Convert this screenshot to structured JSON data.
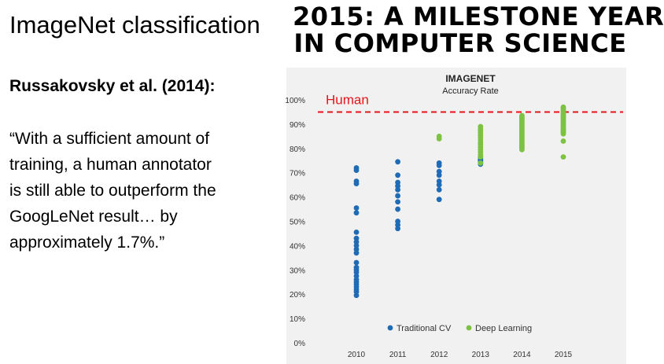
{
  "slide": {
    "title": "ImageNet classification",
    "citation": "Russakovsky et al. (2014):",
    "quote_lines": [
      "“With a sufficient amount of",
      "training, a human annotator",
      "is still able to outperform the",
      "GoogLeNet result… by",
      "approximately 1.7%.”"
    ],
    "headline_lines": [
      "2015: A MILESTONE YEAR",
      "IN COMPUTER SCIENCE"
    ]
  },
  "chart_data": {
    "type": "scatter",
    "title": "IMAGENET",
    "subtitle": "Accuracy Rate",
    "x_categories": [
      "2010",
      "2011",
      "2012",
      "2013",
      "2014",
      "2015"
    ],
    "y_ticks": [
      "0%",
      "10%",
      "20%",
      "30%",
      "40%",
      "50%",
      "60%",
      "70%",
      "80%",
      "90%",
      "100%"
    ],
    "ylim": [
      0,
      100
    ],
    "grid": false,
    "legend_position": "bottom",
    "human_line": {
      "label": "Human",
      "value": 95,
      "color": "#e8141b"
    },
    "series": [
      {
        "name": "Traditional CV",
        "color": "#1f6bb5",
        "points": [
          [
            "2010",
            72
          ],
          [
            "2010",
            71
          ],
          [
            "2010",
            66.5
          ],
          [
            "2010",
            65.5
          ],
          [
            "2010",
            55.5
          ],
          [
            "2010",
            53.5
          ],
          [
            "2010",
            45.5
          ],
          [
            "2010",
            43
          ],
          [
            "2010",
            41.5
          ],
          [
            "2010",
            40
          ],
          [
            "2010",
            38.5
          ],
          [
            "2010",
            37
          ],
          [
            "2010",
            33
          ],
          [
            "2010",
            31
          ],
          [
            "2010",
            30
          ],
          [
            "2010",
            29
          ],
          [
            "2010",
            27.5
          ],
          [
            "2010",
            26
          ],
          [
            "2010",
            25
          ],
          [
            "2010",
            24
          ],
          [
            "2010",
            23
          ],
          [
            "2010",
            22
          ],
          [
            "2010",
            21
          ],
          [
            "2010",
            19.5
          ],
          [
            "2011",
            74.5
          ],
          [
            "2011",
            69
          ],
          [
            "2011",
            66
          ],
          [
            "2011",
            64.5
          ],
          [
            "2011",
            63
          ],
          [
            "2011",
            60.5
          ],
          [
            "2011",
            58
          ],
          [
            "2011",
            55
          ],
          [
            "2011",
            50
          ],
          [
            "2011",
            48.5
          ],
          [
            "2011",
            47
          ],
          [
            "2012",
            74
          ],
          [
            "2012",
            73
          ],
          [
            "2012",
            70.5
          ],
          [
            "2012",
            69
          ],
          [
            "2012",
            66.5
          ],
          [
            "2012",
            65
          ],
          [
            "2012",
            63
          ],
          [
            "2012",
            59
          ],
          [
            "2013",
            76.5
          ],
          [
            "2013",
            75.5
          ],
          [
            "2013",
            75
          ],
          [
            "2013",
            74.5
          ],
          [
            "2013",
            74
          ],
          [
            "2013",
            73.5
          ]
        ]
      },
      {
        "name": "Deep Learning",
        "color": "#7dc242",
        "points": [
          [
            "2012",
            85
          ],
          [
            "2012",
            84
          ],
          [
            "2013",
            89
          ],
          [
            "2013",
            88
          ],
          [
            "2013",
            87.5
          ],
          [
            "2013",
            86.5
          ],
          [
            "2013",
            85.5
          ],
          [
            "2013",
            84.5
          ],
          [
            "2013",
            83.5
          ],
          [
            "2013",
            82.5
          ],
          [
            "2013",
            81.5
          ],
          [
            "2013",
            80.5
          ],
          [
            "2013",
            79.5
          ],
          [
            "2013",
            78.5
          ],
          [
            "2013",
            77.5
          ],
          [
            "2013",
            76.5
          ],
          [
            "2013",
            74
          ],
          [
            "2014",
            93.5
          ],
          [
            "2014",
            93
          ],
          [
            "2014",
            92.5
          ],
          [
            "2014",
            92
          ],
          [
            "2014",
            91.5
          ],
          [
            "2014",
            91
          ],
          [
            "2014",
            90.5
          ],
          [
            "2014",
            90
          ],
          [
            "2014",
            89.5
          ],
          [
            "2014",
            89
          ],
          [
            "2014",
            88.5
          ],
          [
            "2014",
            88
          ],
          [
            "2014",
            87.5
          ],
          [
            "2014",
            87
          ],
          [
            "2014",
            86.5
          ],
          [
            "2014",
            86
          ],
          [
            "2014",
            85.5
          ],
          [
            "2014",
            85
          ],
          [
            "2014",
            84.5
          ],
          [
            "2014",
            84
          ],
          [
            "2014",
            83.5
          ],
          [
            "2014",
            83
          ],
          [
            "2014",
            82.5
          ],
          [
            "2014",
            82
          ],
          [
            "2014",
            81.5
          ],
          [
            "2014",
            81
          ],
          [
            "2014",
            80.5
          ],
          [
            "2014",
            80
          ],
          [
            "2014",
            79.5
          ],
          [
            "2015",
            97
          ],
          [
            "2015",
            96.5
          ],
          [
            "2015",
            96
          ],
          [
            "2015",
            95.5
          ],
          [
            "2015",
            95
          ],
          [
            "2015",
            94.5
          ],
          [
            "2015",
            94
          ],
          [
            "2015",
            93.5
          ],
          [
            "2015",
            93
          ],
          [
            "2015",
            92.5
          ],
          [
            "2015",
            92
          ],
          [
            "2015",
            91.5
          ],
          [
            "2015",
            91
          ],
          [
            "2015",
            90.5
          ],
          [
            "2015",
            90
          ],
          [
            "2015",
            89.5
          ],
          [
            "2015",
            89
          ],
          [
            "2015",
            88.5
          ],
          [
            "2015",
            88
          ],
          [
            "2015",
            87.5
          ],
          [
            "2015",
            87
          ],
          [
            "2015",
            86.5
          ],
          [
            "2015",
            86
          ],
          [
            "2015",
            83
          ],
          [
            "2015",
            76.5
          ]
        ]
      }
    ]
  }
}
